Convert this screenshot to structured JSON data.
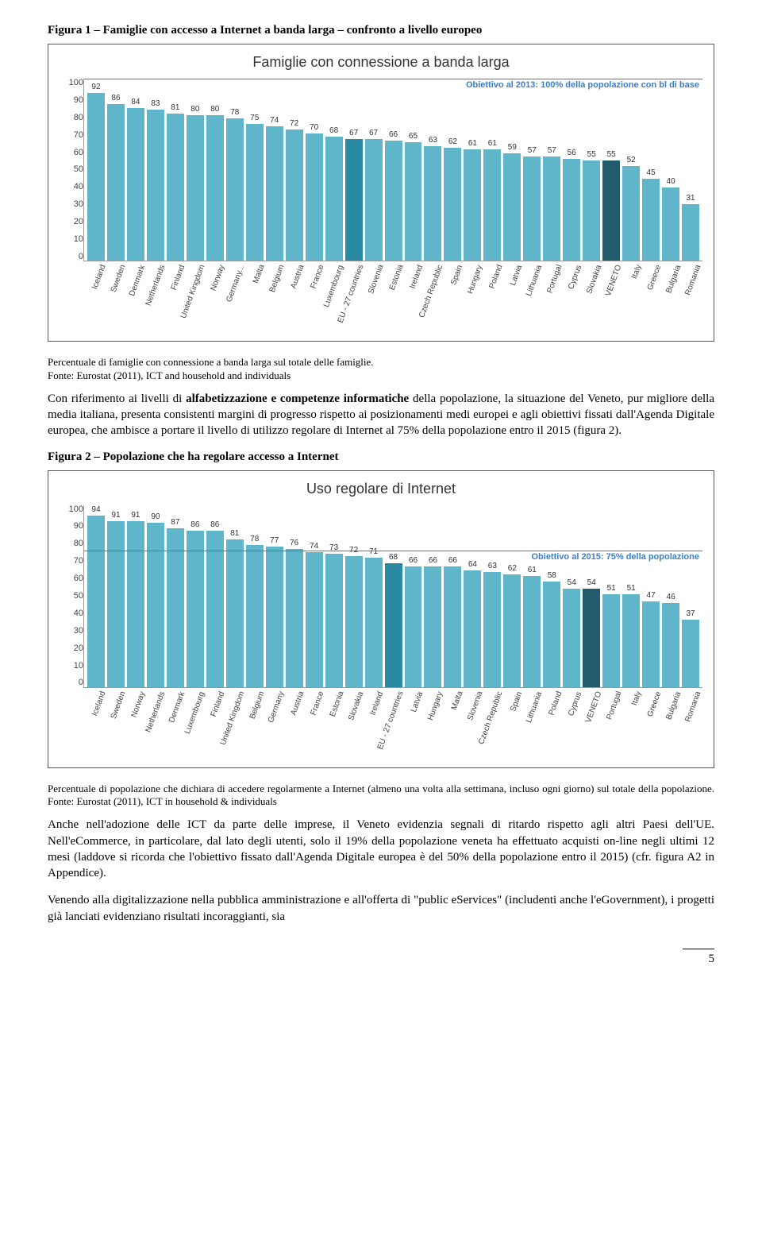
{
  "figure1": {
    "caption": "Figura 1 – Famiglie con accesso a Internet a banda larga – confronto a livello europeo",
    "title": "Famiglie con connessione a banda larga",
    "target_label": "Obiettivo al 2013: 100% della popolazione con bl di base",
    "target_value": 100,
    "target_color": "#3b7fc4",
    "ymax": 100,
    "ytick_step": 10,
    "bar_color": "#5fb5c9",
    "highlight_colors": {
      "EU - 27 countries": "#2a8aa3",
      "VENETO": "#225b6b"
    },
    "background": "#ffffff",
    "categories": [
      "Iceland",
      "Sweden",
      "Denmark",
      "Netherlands",
      "Finland",
      "United Kingdom",
      "Norway",
      "Germany...",
      "Malta",
      "Belgium",
      "Austria",
      "France",
      "Luxembourg",
      "EU - 27 countries",
      "Slovenia",
      "Estonia",
      "Ireland",
      "Czech Republic",
      "Spain",
      "Hungary",
      "Poland",
      "Latvia",
      "Lithuania",
      "Portugal",
      "Cyprus",
      "Slovakia",
      "VENETO",
      "Italy",
      "Greece",
      "Bulgaria",
      "Romania"
    ],
    "values": [
      92,
      86,
      84,
      83,
      81,
      80,
      80,
      78,
      75,
      74,
      72,
      70,
      68,
      67,
      67,
      66,
      65,
      63,
      62,
      61,
      61,
      59,
      57,
      57,
      56,
      55,
      55,
      52,
      45,
      40,
      31
    ],
    "note": "Percentuale di famiglie con connessione a banda larga sul totale delle famiglie.",
    "note2": "Fonte: Eurostat (2011), ICT and household and individuals"
  },
  "para1": "Con riferimento ai livelli di alfabetizzazione e competenze informatiche della popolazione, la situazione del Veneto, pur migliore della media italiana, presenta consistenti margini di progresso rispetto ai posizionamenti medi europei e agli obiettivi fissati dall'Agenda Digitale europea, che ambisce a portare il livello di utilizzo regolare di Internet al 75% della popolazione entro il 2015 (figura 2).",
  "figure2": {
    "caption": "Figura 2 – Popolazione che ha regolare accesso a Internet",
    "title": "Uso regolare di Internet",
    "target_label": "Obiettivo al 2015: 75% della popolazione",
    "target_value": 75,
    "target_color": "#3b7fc4",
    "ymax": 100,
    "ytick_step": 10,
    "bar_color": "#5fb5c9",
    "highlight_colors": {
      "EU - 27 countries": "#2a8aa3",
      "VENETO": "#225b6b"
    },
    "background": "#ffffff",
    "categories": [
      "Iceland",
      "Sweden",
      "Norway",
      "Netherlands",
      "Denmark",
      "Luxembourg",
      "Finland",
      "United Kingdom",
      "Belgium",
      "Germany",
      "Austria",
      "France",
      "Estonia",
      "Slovakia",
      "Ireland",
      "EU - 27 countries",
      "Latvia",
      "Hungary",
      "Malta",
      "Slovenia",
      "Czech Republic",
      "Spain",
      "Lithuania",
      "Poland",
      "Cyprus",
      "VENETO",
      "Portugal",
      "Italy",
      "Greece",
      "Bulgaria",
      "Romania"
    ],
    "values": [
      94,
      91,
      91,
      90,
      87,
      86,
      86,
      81,
      78,
      77,
      76,
      74,
      73,
      72,
      71,
      68,
      66,
      66,
      66,
      64,
      63,
      62,
      61,
      58,
      54,
      54,
      51,
      51,
      47,
      46,
      37
    ],
    "note": "Percentuale di popolazione che dichiara di accedere regolarmente a Internet (almeno una volta alla settimana, incluso ogni giorno) sul totale della popolazione. Fonte: Eurostat (2011), ICT in household & individuals"
  },
  "para2": "Anche nell'adozione delle ICT da parte delle imprese, il Veneto evidenzia segnali di ritardo rispetto agli altri Paesi dell'UE. Nell'eCommerce, in particolare, dal lato degli utenti, solo il 19% della popolazione veneta ha effettuato acquisti on-line negli ultimi 12 mesi (laddove si ricorda che l'obiettivo fissato dall'Agenda Digitale europea è del 50% della popolazione entro il 2015) (cfr. figura A2 in Appendice).",
  "para3": "Venendo alla digitalizzazione nella pubblica amministrazione e all'offerta di \"public eServices\" (includenti anche l'eGovernment), i progetti già lanciati evidenziano risultati incoraggianti, sia",
  "page_number": "5"
}
